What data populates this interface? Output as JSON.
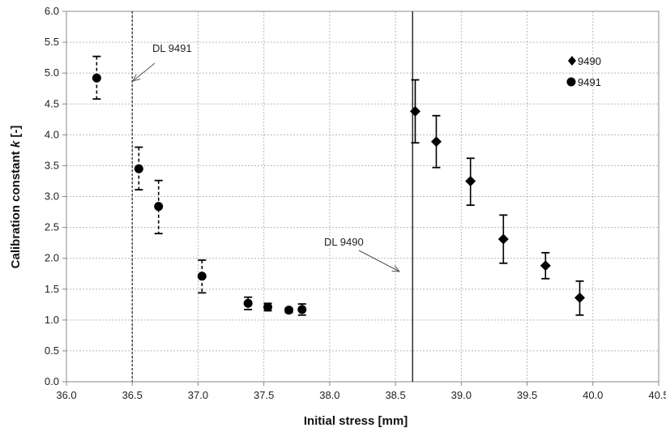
{
  "chart_data": {
    "type": "scatter",
    "xlabel": "Initial stress [mm]",
    "ylabel_main": "Calibration constant ",
    "ylabel_italic": "k",
    "ylabel_tail": " [-]",
    "xlim": [
      36.0,
      40.5
    ],
    "ylim": [
      0.0,
      6.0
    ],
    "x_ticks": [
      "36.0",
      "36.5",
      "37.0",
      "37.5",
      "38.0",
      "38.5",
      "39.0",
      "39.5",
      "40.0",
      "40.5"
    ],
    "y_ticks": [
      "0.0",
      "0.5",
      "1.0",
      "1.5",
      "2.0",
      "2.5",
      "3.0",
      "3.5",
      "4.0",
      "4.5",
      "5.0",
      "5.5",
      "6.0"
    ],
    "grid": true,
    "legend_position": "top-right",
    "series": [
      {
        "name": "9490",
        "marker": "diamond",
        "error_style": "solid",
        "points": [
          {
            "x": 38.65,
            "y": 4.38,
            "lo": 3.87,
            "hi": 4.89
          },
          {
            "x": 38.81,
            "y": 3.89,
            "lo": 3.47,
            "hi": 4.31
          },
          {
            "x": 39.07,
            "y": 3.25,
            "lo": 2.86,
            "hi": 3.62
          },
          {
            "x": 39.32,
            "y": 2.31,
            "lo": 1.92,
            "hi": 2.7
          },
          {
            "x": 39.64,
            "y": 1.88,
            "lo": 1.67,
            "hi": 2.09
          },
          {
            "x": 39.9,
            "y": 1.36,
            "lo": 1.08,
            "hi": 1.63
          }
        ]
      },
      {
        "name": "9491",
        "marker": "circle",
        "error_style": "dashed",
        "points": [
          {
            "x": 36.23,
            "y": 4.92,
            "lo": 4.58,
            "hi": 5.27
          },
          {
            "x": 36.55,
            "y": 3.45,
            "lo": 3.11,
            "hi": 3.8
          },
          {
            "x": 36.7,
            "y": 2.84,
            "lo": 2.4,
            "hi": 3.26
          },
          {
            "x": 37.03,
            "y": 1.71,
            "lo": 1.44,
            "hi": 1.97
          },
          {
            "x": 37.38,
            "y": 1.27,
            "lo": 1.17,
            "hi": 1.37
          },
          {
            "x": 37.53,
            "y": 1.21,
            "lo": 1.15,
            "hi": 1.27
          },
          {
            "x": 37.69,
            "y": 1.16,
            "lo": 1.12,
            "hi": 1.19
          },
          {
            "x": 37.79,
            "y": 1.17,
            "lo": 1.08,
            "hi": 1.26
          }
        ]
      }
    ],
    "reference_lines": [
      {
        "label": "DL 9491",
        "x": 36.5,
        "style": "dotted"
      },
      {
        "label": "DL 9490",
        "x": 38.63,
        "style": "solid"
      }
    ]
  }
}
